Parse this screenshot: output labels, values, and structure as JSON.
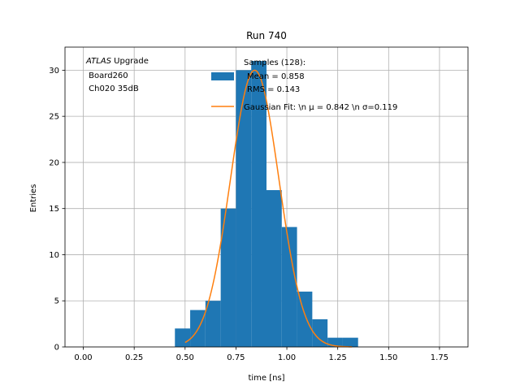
{
  "chart_data": {
    "type": "bar",
    "title": "Run 740",
    "xlabel": "time [ns]",
    "ylabel": "Entries",
    "xlim": [
      -0.09,
      1.89
    ],
    "ylim": [
      0,
      32.5
    ],
    "grid": true,
    "xticks": [
      0.0,
      0.25,
      0.5,
      0.75,
      1.0,
      1.25,
      1.5,
      1.75
    ],
    "xtick_labels": [
      "0.00",
      "0.25",
      "0.50",
      "0.75",
      "1.00",
      "1.25",
      "1.50",
      "1.75"
    ],
    "yticks": [
      0,
      5,
      10,
      15,
      20,
      25,
      30
    ],
    "ytick_labels": [
      "0",
      "5",
      "10",
      "15",
      "20",
      "25",
      "30"
    ],
    "bin_width": 0.075,
    "bins": [
      {
        "left": 0.45,
        "count": 2
      },
      {
        "left": 0.525,
        "count": 4
      },
      {
        "left": 0.6,
        "count": 5
      },
      {
        "left": 0.675,
        "count": 15
      },
      {
        "left": 0.75,
        "count": 30
      },
      {
        "left": 0.825,
        "count": 31
      },
      {
        "left": 0.9,
        "count": 17
      },
      {
        "left": 0.975,
        "count": 13
      },
      {
        "left": 1.05,
        "count": 6
      },
      {
        "left": 1.125,
        "count": 3
      },
      {
        "left": 1.2,
        "count": 1
      },
      {
        "left": 1.275,
        "count": 1
      }
    ],
    "fit": {
      "mu": 0.842,
      "sigma": 0.119,
      "amplitude": 30.0,
      "x_range": [
        0.5,
        1.32
      ]
    },
    "colors": {
      "histogram": "#1f77b4",
      "fit": "#ff7f0e",
      "grid": "#b0b0b0"
    },
    "legend": {
      "placement": "top-right",
      "entries": [
        {
          "kind": "bar",
          "lines": [
            "Samples (128):",
            "Mean = 0.858",
            "RMS = 0.143"
          ]
        },
        {
          "kind": "line",
          "label": "Gaussian Fit: \\n μ = 0.842 \\n σ=0.119"
        }
      ]
    },
    "annotation": {
      "placement": "top-left",
      "experiment": "ATLAS",
      "suffix": " Upgrade",
      "lines": [
        " Board260",
        " Ch020 35dB"
      ]
    }
  }
}
